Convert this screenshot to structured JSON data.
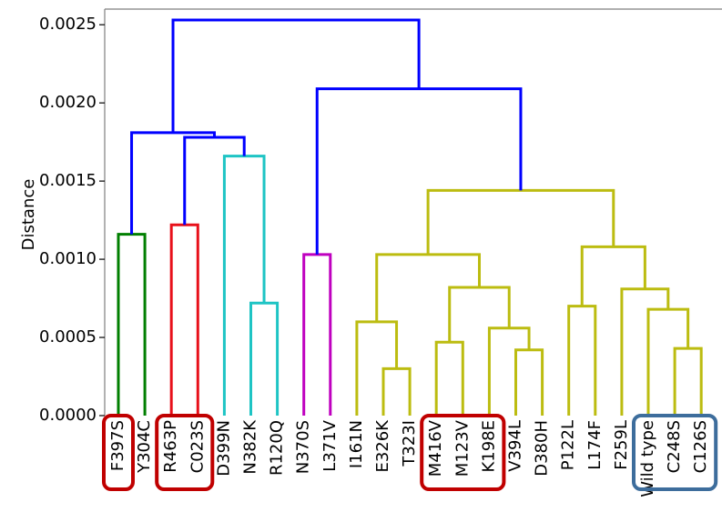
{
  "chart_data": {
    "type": "dendrogram",
    "ylabel": "Distance",
    "ylim": [
      0,
      0.0026
    ],
    "yticks": [
      "0.0000",
      "0.0005",
      "0.0010",
      "0.0015",
      "0.0020",
      "0.0025"
    ],
    "ytick_values": [
      0,
      0.0005,
      0.001,
      0.0015,
      0.002,
      0.0025
    ],
    "leaves": [
      "F397S",
      "Y304C",
      "R463P",
      "C023S",
      "D399N",
      "N382K",
      "R120Q",
      "N370S",
      "L371V",
      "I161N",
      "E326K",
      "T323I",
      "M416V",
      "M123V",
      "K198E",
      "V394L",
      "D380H",
      "P122L",
      "L174F",
      "F259L",
      "Wild type",
      "C248S",
      "C126S"
    ],
    "colors": {
      "upper": "#0000ff",
      "green": "#007f00",
      "red": "#e8101a",
      "cyan": "#1ec4c4",
      "magenta": "#bf00bf",
      "olive": "#bcbc10",
      "box_red": "#c00000",
      "box_blue": "#3d6d9c",
      "axis": "#7f7f7f"
    },
    "merges": [
      {
        "a": 0,
        "b": 1,
        "h": 0.00116,
        "color": "green"
      },
      {
        "a": 2,
        "b": 3,
        "h": 0.00122,
        "color": "red"
      },
      {
        "a": 5,
        "b": 6,
        "h": 0.00072,
        "color": "cyan"
      },
      {
        "a": 4,
        "b": 25,
        "h": 0.00166,
        "color": "cyan"
      },
      {
        "a": 24,
        "b": 26,
        "h": 0.00178,
        "color": "upper"
      },
      {
        "a": 23,
        "b": 27,
        "h": 0.00181,
        "color": "upper"
      },
      {
        "a": 7,
        "b": 8,
        "h": 0.00103,
        "color": "magenta"
      },
      {
        "a": 10,
        "b": 11,
        "h": 0.0003,
        "color": "olive"
      },
      {
        "a": 9,
        "b": 30,
        "h": 0.0006,
        "color": "olive"
      },
      {
        "a": 15,
        "b": 16,
        "h": 0.00042,
        "color": "olive"
      },
      {
        "a": 14,
        "b": 32,
        "h": 0.00056,
        "color": "olive"
      },
      {
        "a": 12,
        "b": 13,
        "h": 0.00047,
        "color": "olive"
      },
      {
        "a": 34,
        "b": 33,
        "h": 0.00082,
        "color": "olive"
      },
      {
        "a": 31,
        "b": 35,
        "h": 0.00103,
        "color": "olive"
      },
      {
        "a": 17,
        "b": 18,
        "h": 0.0007,
        "color": "olive"
      },
      {
        "a": 21,
        "b": 22,
        "h": 0.00043,
        "color": "olive"
      },
      {
        "a": 20,
        "b": 38,
        "h": 0.00068,
        "color": "olive"
      },
      {
        "a": 19,
        "b": 39,
        "h": 0.00081,
        "color": "olive"
      },
      {
        "a": 37,
        "b": 40,
        "h": 0.00108,
        "color": "olive"
      },
      {
        "a": 36,
        "b": 41,
        "h": 0.00144,
        "color": "olive"
      },
      {
        "a": 29,
        "b": 42,
        "h": 0.00209,
        "color": "upper"
      },
      {
        "a": 28,
        "b": 43,
        "h": 0.00253,
        "color": "upper"
      }
    ],
    "boxes": [
      {
        "from": 0,
        "to": 0,
        "color": "box_red"
      },
      {
        "from": 2,
        "to": 3,
        "color": "box_red"
      },
      {
        "from": 12,
        "to": 14,
        "color": "box_red"
      },
      {
        "from": 20,
        "to": 22,
        "color": "box_blue"
      }
    ]
  }
}
